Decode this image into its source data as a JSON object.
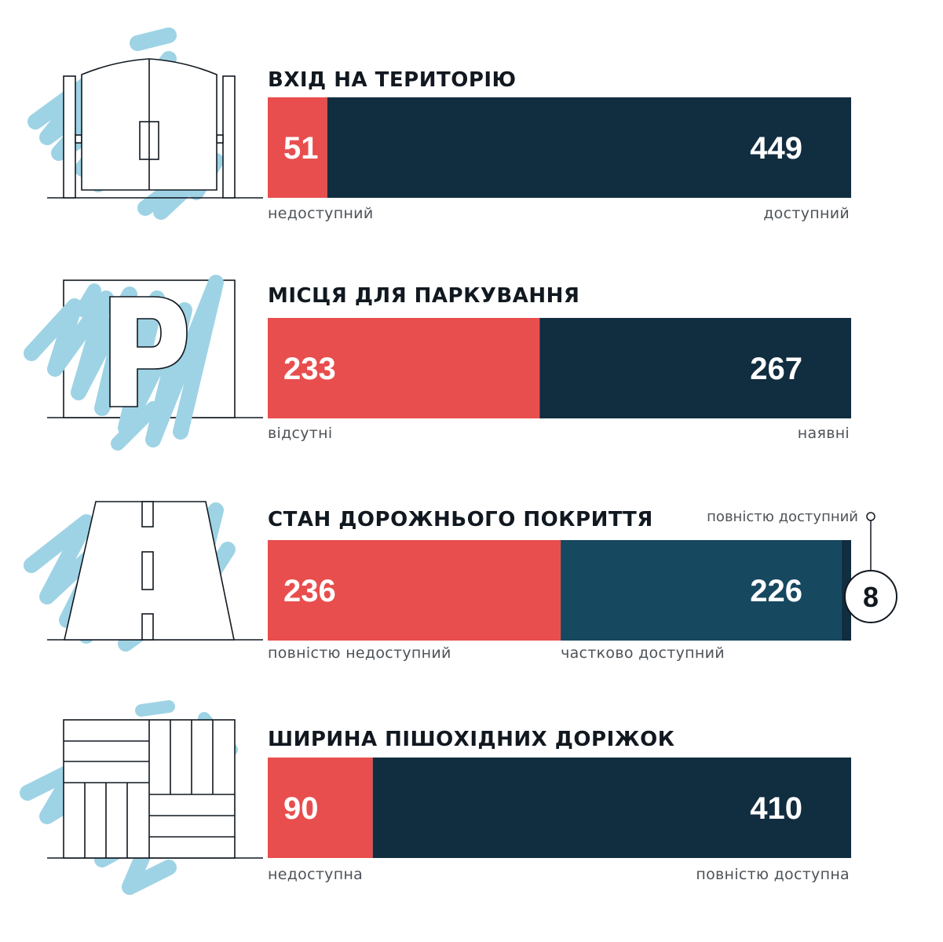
{
  "colors": {
    "inaccessible": "#e84e4d",
    "accessible": "#112d40",
    "partial": "#164860",
    "scribble": "#9ed3e5",
    "text": "#111820",
    "label": "#4d5358"
  },
  "chart_data": [
    {
      "type": "bar",
      "orientation": "horizontal-stacked",
      "title": "ВХІД НА ТЕРИТОРІЮ",
      "icon": "gate-icon",
      "series": [
        {
          "value": 51,
          "label": "недоступний",
          "color": "#e84e4d"
        },
        {
          "value": 449,
          "label": "доступний",
          "color": "#112d40"
        }
      ],
      "total": 500
    },
    {
      "type": "bar",
      "orientation": "horizontal-stacked",
      "title": "МІСЦЯ ДЛЯ ПАРКУВАННЯ",
      "icon": "parking-icon",
      "series": [
        {
          "value": 233,
          "label": "відсутні",
          "color": "#e84e4d"
        },
        {
          "value": 267,
          "label": "наявні",
          "color": "#112d40"
        }
      ],
      "total": 500
    },
    {
      "type": "bar",
      "orientation": "horizontal-stacked",
      "title": "СТАН ДОРОЖНЬОГО ПОКРИТТЯ",
      "icon": "road-icon",
      "series": [
        {
          "value": 236,
          "label": "повністю недоступний",
          "color": "#e84e4d"
        },
        {
          "value": 226,
          "label": "частково доступний",
          "color": "#164860"
        },
        {
          "value": 8,
          "label": "повністю доступний",
          "color": "#112d40",
          "callout": "8"
        }
      ],
      "total": 470
    },
    {
      "type": "bar",
      "orientation": "horizontal-stacked",
      "title": "ШИРИНА ПІШОХІДНИХ ДОРІЖОК",
      "icon": "paving-tiles-icon",
      "series": [
        {
          "value": 90,
          "label": "недоступна",
          "color": "#e84e4d"
        },
        {
          "value": 410,
          "label": "повністю доступна",
          "color": "#112d40"
        }
      ],
      "total": 500
    }
  ]
}
